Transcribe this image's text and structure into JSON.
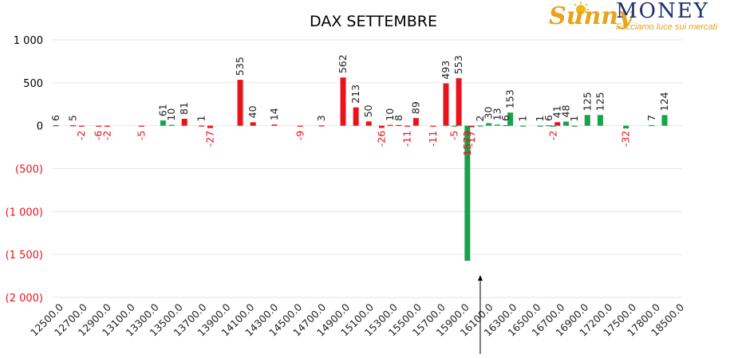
{
  "logo": {
    "word1": "Sunny",
    "word2": "MONEY",
    "tagline": "Facciamo luce sui mercati"
  },
  "chart_data": {
    "type": "bar",
    "title": "DAX SETTEMBRE",
    "xlabel": "",
    "ylabel": "",
    "ylim": [
      -2000,
      1000
    ],
    "yticks": [
      {
        "value": 1000,
        "label": "1 000"
      },
      {
        "value": 500,
        "label": "500"
      },
      {
        "value": 0,
        "label": "0"
      },
      {
        "value": -500,
        "label": "(500)"
      },
      {
        "value": -1000,
        "label": "(1 000)"
      },
      {
        "value": -1500,
        "label": "(1 500)"
      },
      {
        "value": -2000,
        "label": "(2 000)"
      }
    ],
    "xticks": [
      "12500.0",
      "12700.0",
      "12900.0",
      "13100.0",
      "13300.0",
      "13500.0",
      "13700.0",
      "13900.0",
      "14100.0",
      "14300.0",
      "14500.0",
      "14700.0",
      "14900.0",
      "15100.0",
      "15300.0",
      "15500.0",
      "15700.0",
      "15900.0",
      "16100.0",
      "16300.0",
      "16500.0",
      "16700.0",
      "16900.0",
      "17200.0",
      "17500.0",
      "17800.0",
      "18500.0"
    ],
    "grid": true,
    "legend": "none",
    "colors": {
      "red": "#e8141b",
      "green": "#16a34a",
      "neg_label": "#e8141b",
      "label": "#222222",
      "marker": "#000000"
    },
    "bars": [
      {
        "x": 12500,
        "value": 6,
        "color": "red"
      },
      {
        "x": 12600,
        "value": 5,
        "color": "red"
      },
      {
        "x": 12650,
        "value": -2,
        "color": "red"
      },
      {
        "x": 12750,
        "value": -6,
        "color": "red"
      },
      {
        "x": 12800,
        "value": -2,
        "color": "red"
      },
      {
        "x": 13000,
        "value": -5,
        "color": "red"
      },
      {
        "x": 13125,
        "value": 61,
        "color": "green"
      },
      {
        "x": 13175,
        "value": 10,
        "color": "green"
      },
      {
        "x": 13250,
        "value": 81,
        "color": "red"
      },
      {
        "x": 13350,
        "value": 1,
        "color": "red"
      },
      {
        "x": 13400,
        "value": -27,
        "color": "red"
      },
      {
        "x": 13575,
        "value": 535,
        "color": "red"
      },
      {
        "x": 13650,
        "value": 40,
        "color": "red"
      },
      {
        "x": 13775,
        "value": 14,
        "color": "red"
      },
      {
        "x": 13925,
        "value": -9,
        "color": "red"
      },
      {
        "x": 14050,
        "value": 3,
        "color": "red"
      },
      {
        "x": 14175,
        "value": 562,
        "color": "red"
      },
      {
        "x": 14250,
        "value": 213,
        "color": "red"
      },
      {
        "x": 14325,
        "value": 50,
        "color": "red"
      },
      {
        "x": 14400,
        "value": -26,
        "color": "red"
      },
      {
        "x": 14450,
        "value": 10,
        "color": "red"
      },
      {
        "x": 14500,
        "value": 8,
        "color": "red"
      },
      {
        "x": 14550,
        "value": -11,
        "color": "red"
      },
      {
        "x": 14600,
        "value": 89,
        "color": "red"
      },
      {
        "x": 14700,
        "value": -11,
        "color": "red"
      },
      {
        "x": 14775,
        "value": 493,
        "color": "red"
      },
      {
        "x": 14825,
        "value": -5,
        "color": "green"
      },
      {
        "x": 14850,
        "value": 553,
        "color": "red"
      },
      {
        "x": 14900,
        "value": -1573,
        "color": "green"
      },
      {
        "x": 14925,
        "value": -17,
        "color": "red"
      },
      {
        "x": 14975,
        "value": 2,
        "color": "green"
      },
      {
        "x": 15025,
        "value": 30,
        "color": "green"
      },
      {
        "x": 15075,
        "value": 13,
        "color": "green"
      },
      {
        "x": 15125,
        "value": 6,
        "color": "green"
      },
      {
        "x": 15150,
        "value": 153,
        "color": "green"
      },
      {
        "x": 15225,
        "value": 1,
        "color": "green"
      },
      {
        "x": 15325,
        "value": 1,
        "color": "green"
      },
      {
        "x": 15375,
        "value": 6,
        "color": "green"
      },
      {
        "x": 15400,
        "value": -2,
        "color": "green"
      },
      {
        "x": 15425,
        "value": 41,
        "color": "red"
      },
      {
        "x": 15475,
        "value": 48,
        "color": "green"
      },
      {
        "x": 15525,
        "value": 1,
        "color": "green"
      },
      {
        "x": 15600,
        "value": 125,
        "color": "green"
      },
      {
        "x": 15675,
        "value": 125,
        "color": "green"
      },
      {
        "x": 15825,
        "value": -32,
        "color": "green"
      },
      {
        "x": 15975,
        "value": 7,
        "color": "green"
      },
      {
        "x": 16050,
        "value": 124,
        "color": "green"
      }
    ],
    "marker": {
      "x": 14975,
      "value": -1573
    }
  }
}
